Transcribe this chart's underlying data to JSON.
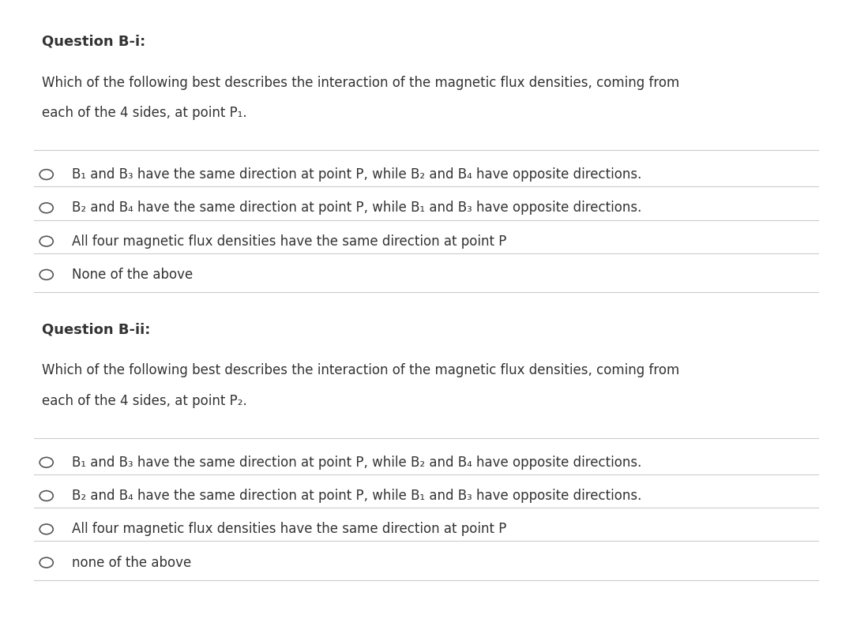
{
  "background_color": "#ffffff",
  "text_color": "#333333",
  "line_color": "#cccccc",
  "q1_title": "Question B-i:",
  "q1_body_line1": "Which of the following best describes the interaction of the magnetic flux densities, coming from",
  "q1_body_line2": "each of the 4 sides, at point P₁.",
  "q1_options": [
    "B₁ and B₃ have the same direction at point P, while B₂ and B₄ have opposite directions.",
    "B₂ and B₄ have the same direction at point P, while B₁ and B₃ have opposite directions.",
    "All four magnetic flux densities have the same direction at point P",
    "None of the above"
  ],
  "q2_title": "Question B-ii:",
  "q2_body_line1": "Which of the following best describes the interaction of the magnetic flux densities, coming from",
  "q2_body_line2": "each of the 4 sides, at point P₂.",
  "q2_options": [
    "B₁ and B₃ have the same direction at point P, while B₂ and B₄ have opposite directions.",
    "B₂ and B₄ have the same direction at point P, while B₁ and B₃ have opposite directions.",
    "All four magnetic flux densities have the same direction at point P",
    "none of the above"
  ],
  "font_size_title": 13,
  "font_size_body": 12,
  "font_size_option": 12
}
